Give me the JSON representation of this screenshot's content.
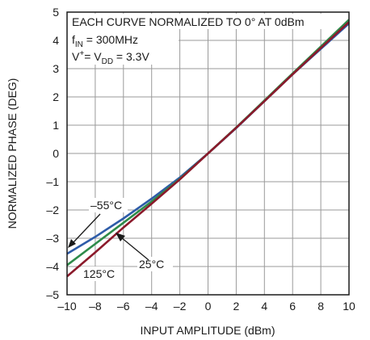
{
  "chart_data": {
    "type": "line",
    "title": "",
    "xlabel": "INPUT AMPLITUDE (dBm)",
    "ylabel": "NORMALIZED PHASE (DEG)",
    "xlim": [
      -10,
      10
    ],
    "ylim": [
      -5,
      5
    ],
    "xticks": [
      -10,
      -8,
      -6,
      -4,
      -2,
      0,
      2,
      4,
      6,
      8,
      10
    ],
    "yticks": [
      -5,
      -4,
      -3,
      -2,
      -1,
      0,
      1,
      2,
      3,
      4,
      5
    ],
    "xtick_labels": [
      "–10",
      "–8",
      "–6",
      "–4",
      "–2",
      "0",
      "2",
      "4",
      "6",
      "8",
      "10"
    ],
    "ytick_labels": [
      "–5",
      "–4",
      "–3",
      "–2",
      "–1",
      "0",
      "1",
      "2",
      "3",
      "4",
      "5"
    ],
    "grid": true,
    "annotations": {
      "header": "EACH CURVE NORMALIZED TO 0° AT 0dBm",
      "fin_main": "f",
      "fin_sub": "IN",
      "fin_value": " = 300MHz",
      "vplus_main": "V",
      "vplus_sup": "+",
      "vplus_eq": "= V",
      "vdd_sub": "DD",
      "vdd_value": " = 3.3V"
    },
    "series": [
      {
        "name": "–55°C",
        "color": "#2e5ca8",
        "x": [
          -10,
          -8,
          -6,
          -4,
          -2,
          0,
          2,
          4,
          6,
          8,
          10
        ],
        "y": [
          -3.55,
          -2.95,
          -2.3,
          -1.6,
          -0.85,
          0,
          0.9,
          1.85,
          2.8,
          3.7,
          4.6
        ]
      },
      {
        "name": "25°C",
        "color": "#2e8b4a",
        "x": [
          -10,
          -8,
          -6,
          -4,
          -2,
          0,
          2,
          4,
          6,
          8,
          10
        ],
        "y": [
          -3.95,
          -3.2,
          -2.45,
          -1.7,
          -0.9,
          0,
          0.92,
          1.87,
          2.83,
          3.78,
          4.73
        ]
      },
      {
        "name": "125°C",
        "color": "#8b1a2b",
        "x": [
          -10,
          -8,
          -6,
          -4,
          -2,
          0,
          2,
          4,
          6,
          8,
          10
        ],
        "y": [
          -4.35,
          -3.5,
          -2.62,
          -1.78,
          -0.92,
          0,
          0.91,
          1.85,
          2.8,
          3.73,
          4.65
        ]
      }
    ]
  }
}
